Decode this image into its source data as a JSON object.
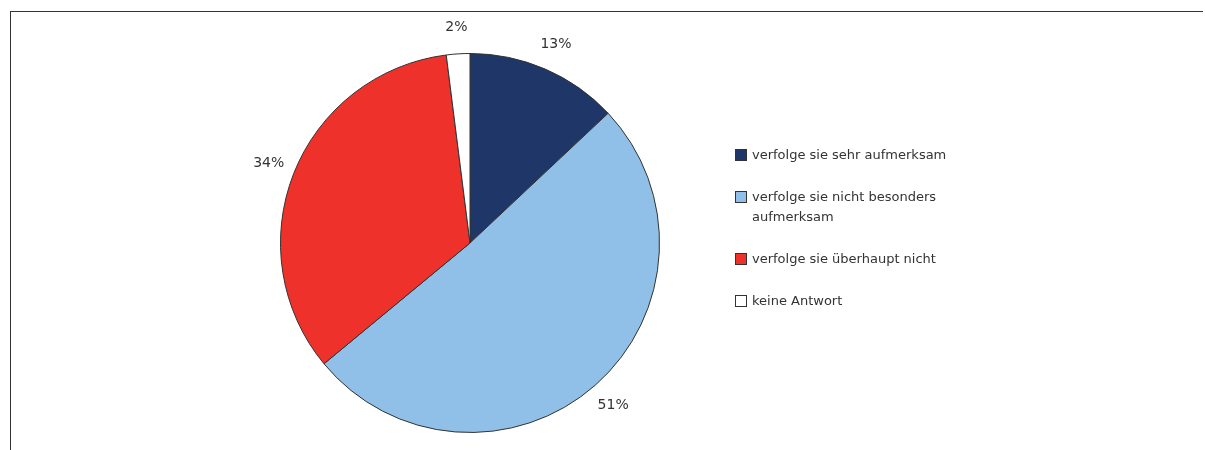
{
  "chart_data": {
    "type": "pie",
    "categories": [
      "verfolge sie sehr aufmerksam",
      "verfolge sie nicht besonders aufmerksam",
      "verfolge sie überhaupt nicht",
      "keine Antwort"
    ],
    "values": [
      13,
      51,
      34,
      2
    ],
    "colors": [
      "#1f3669",
      "#90c0e8",
      "#ee322b",
      "#ffffff"
    ],
    "value_labels": [
      "13%",
      "51%",
      "34%",
      "2%"
    ],
    "legend": "right"
  }
}
